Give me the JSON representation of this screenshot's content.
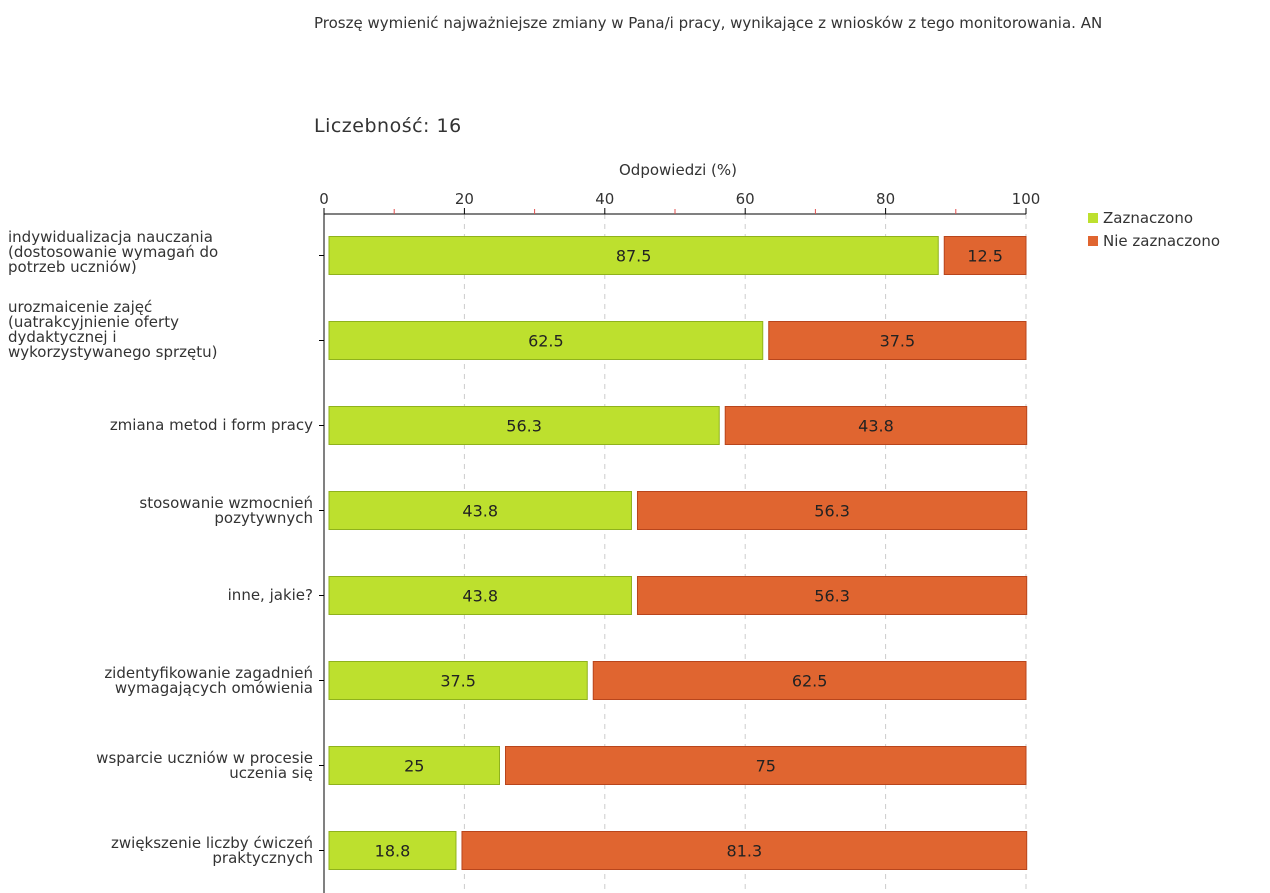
{
  "title": "Proszę wymienić najważniejsze zmiany w Pana/i pracy, wynikające z wniosków z tego monitorowania. AN",
  "count_label": "Liczebność: 16",
  "colors": {
    "zaznaczono_fill": "#bde02e",
    "zaznaczono_stroke": "#8fb21c",
    "nie_fill": "#e06530",
    "nie_stroke": "#b8451c",
    "axis": "#000000",
    "tick": "#e05050",
    "grid": "#cccccc"
  },
  "chart_data": {
    "type": "bar",
    "orientation": "horizontal",
    "stacked": true,
    "xlabel": "Odpowiedzi (%)",
    "xlim": [
      0,
      100
    ],
    "xticks": [
      0,
      20,
      40,
      60,
      80,
      100
    ],
    "legend_position": "right",
    "categories": [
      "indywidualizacja nauczania (dostosowanie wymagań do potrzeb uczniów)",
      "urozmaicenie zajęć (uatrakcyjnienie oferty dydaktycznej i wykorzystywanego sprzętu)",
      "zmiana metod i form pracy",
      "stosowanie wzmocnień pozytywnych",
      "inne, jakie?",
      "zidentyfikowanie zagadnień wymagających omówienia",
      "wsparcie uczniów w procesie uczenia się",
      "zwiększenie liczby ćwiczeń praktycznych"
    ],
    "category_lines": [
      [
        "indywidualizacja nauczania",
        "(dostosowanie wymagań do",
        "potrzeb uczniów)"
      ],
      [
        "urozmaicenie zajęć",
        "(uatrakcyjnienie oferty",
        "dydaktycznej i",
        "wykorzystywanego sprzętu)"
      ],
      [
        "zmiana metod i form pracy"
      ],
      [
        "stosowanie wzmocnień",
        "pozytywnych"
      ],
      [
        "inne, jakie?"
      ],
      [
        "zidentyfikowanie zagadnień",
        "wymagających omówienia"
      ],
      [
        "wsparcie uczniów w procesie",
        "uczenia się"
      ],
      [
        "zwiększenie liczby ćwiczeń",
        "praktycznych"
      ]
    ],
    "series": [
      {
        "name": "Zaznaczono",
        "values": [
          87.5,
          62.5,
          56.3,
          43.8,
          43.8,
          37.5,
          25,
          18.8
        ]
      },
      {
        "name": "Nie zaznaczono",
        "values": [
          12.5,
          37.5,
          43.8,
          56.3,
          56.3,
          62.5,
          75,
          81.3
        ]
      }
    ]
  }
}
